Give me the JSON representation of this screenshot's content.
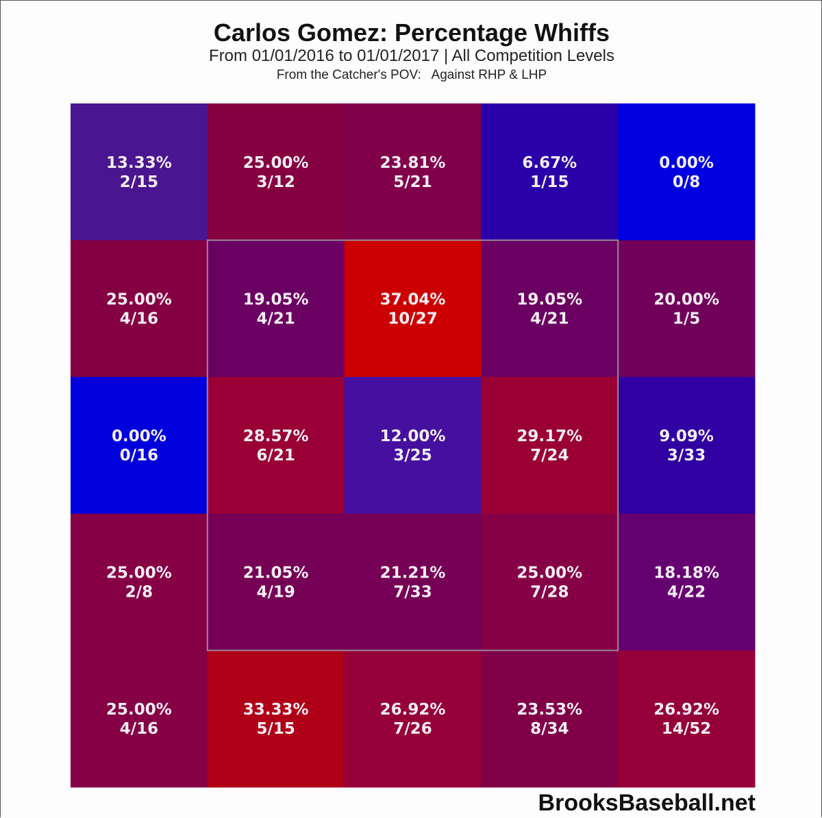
{
  "chart_data": {
    "type": "heatmap",
    "title": "Carlos Gomez: Percentage Whiffs",
    "subtitle": "From 01/01/2016 to 01/01/2017 | All Competition Levels",
    "subtitle2": "From the Catcher's POV:   Against RHP & LHP",
    "source": "BrooksBaseball.net",
    "strike_zone": {
      "rows": [
        1,
        3
      ],
      "cols": [
        1,
        3
      ]
    },
    "color_scale": {
      "low": "#0000e0",
      "high": "#cc0000"
    },
    "cells": [
      [
        {
          "pct": "13.33%",
          "frac": "2/15",
          "color": "#4a1590"
        },
        {
          "pct": "25.00%",
          "frac": "3/12",
          "color": "#850040"
        },
        {
          "pct": "23.81%",
          "frac": "5/21",
          "color": "#80004a"
        },
        {
          "pct": "6.67%",
          "frac": "1/15",
          "color": "#2a00a8"
        },
        {
          "pct": "0.00%",
          "frac": "0/8",
          "color": "#0000e0"
        }
      ],
      [
        {
          "pct": "25.00%",
          "frac": "4/16",
          "color": "#850042"
        },
        {
          "pct": "19.05%",
          "frac": "4/21",
          "color": "#6a0062"
        },
        {
          "pct": "37.04%",
          "frac": "10/27",
          "color": "#cc0000"
        },
        {
          "pct": "19.05%",
          "frac": "4/21",
          "color": "#6a0062"
        },
        {
          "pct": "20.00%",
          "frac": "1/5",
          "color": "#70005a"
        }
      ],
      [
        {
          "pct": "0.00%",
          "frac": "0/16",
          "color": "#0000dd"
        },
        {
          "pct": "28.57%",
          "frac": "6/21",
          "color": "#9a0035"
        },
        {
          "pct": "12.00%",
          "frac": "3/25",
          "color": "#4510a0"
        },
        {
          "pct": "29.17%",
          "frac": "7/24",
          "color": "#9a0033"
        },
        {
          "pct": "9.09%",
          "frac": "3/33",
          "color": "#3000a2"
        }
      ],
      [
        {
          "pct": "25.00%",
          "frac": "2/8",
          "color": "#850045"
        },
        {
          "pct": "21.05%",
          "frac": "4/19",
          "color": "#750055"
        },
        {
          "pct": "21.21%",
          "frac": "7/33",
          "color": "#750055"
        },
        {
          "pct": "25.00%",
          "frac": "7/28",
          "color": "#850046"
        },
        {
          "pct": "18.18%",
          "frac": "4/22",
          "color": "#650070"
        }
      ],
      [
        {
          "pct": "25.00%",
          "frac": "4/16",
          "color": "#850045"
        },
        {
          "pct": "33.33%",
          "frac": "5/15",
          "color": "#b00018"
        },
        {
          "pct": "26.92%",
          "frac": "7/26",
          "color": "#950038"
        },
        {
          "pct": "23.53%",
          "frac": "8/34",
          "color": "#800048"
        },
        {
          "pct": "26.92%",
          "frac": "14/52",
          "color": "#950038"
        }
      ]
    ]
  }
}
